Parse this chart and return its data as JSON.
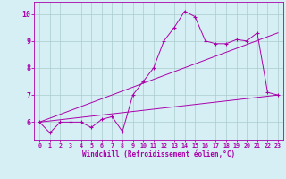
{
  "xlabel": "Windchill (Refroidissement éolien,°C)",
  "background_color": "#d6eff5",
  "line_color": "#aa00aa",
  "grid_color": "#aacccc",
  "xlim": [
    -0.5,
    23.5
  ],
  "ylim": [
    5.35,
    10.45
  ],
  "yticks": [
    6,
    7,
    8,
    9,
    10
  ],
  "xticks": [
    0,
    1,
    2,
    3,
    4,
    5,
    6,
    7,
    8,
    9,
    10,
    11,
    12,
    13,
    14,
    15,
    16,
    17,
    18,
    19,
    20,
    21,
    22,
    23
  ],
  "series1_x": [
    0,
    1,
    2,
    3,
    4,
    5,
    6,
    7,
    8,
    9,
    10,
    11,
    12,
    13,
    14,
    15,
    16,
    17,
    18,
    19,
    20,
    21,
    22,
    23
  ],
  "series1_y": [
    6.0,
    5.6,
    6.0,
    6.0,
    6.0,
    5.8,
    6.1,
    6.2,
    5.65,
    7.0,
    7.5,
    8.0,
    9.0,
    9.5,
    10.1,
    9.9,
    9.0,
    8.9,
    8.9,
    9.05,
    9.0,
    9.3,
    7.1,
    7.0
  ],
  "series2_x": [
    0,
    23
  ],
  "series2_y": [
    6.0,
    7.0
  ],
  "series3_x": [
    0,
    23
  ],
  "series3_y": [
    6.0,
    9.3
  ]
}
